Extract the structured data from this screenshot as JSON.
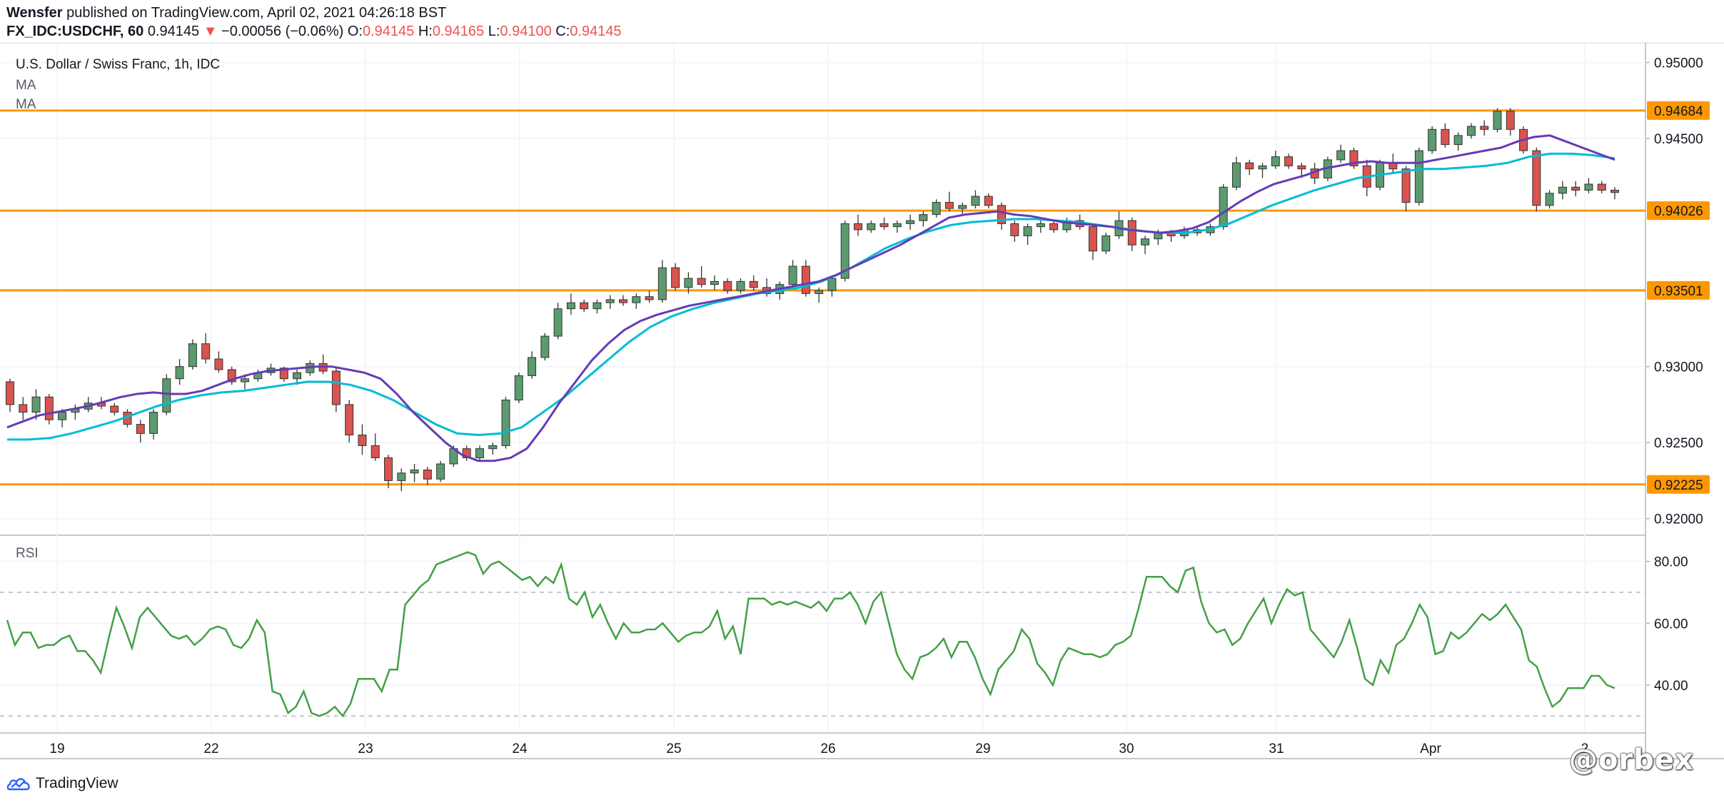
{
  "header": {
    "author": "Wensfer",
    "published_text": "published on TradingView.com, April 02, 2021 04:26:18 BST",
    "symbol": "FX_IDC:USDCHF, 60",
    "last": "0.94145",
    "change": "−0.00056 (−0.06%)",
    "o_label": "O:",
    "o": "0.94145",
    "h_label": "H:",
    "h": "0.94165",
    "l_label": "L:",
    "l": "0.94100",
    "c_label": "C:",
    "c": "0.94145"
  },
  "legend": {
    "series_title": "U.S. Dollar / Swiss Franc, 1h, IDC",
    "ma1": "MA",
    "ma2": "MA",
    "rsi": "RSI"
  },
  "footer": {
    "brand": "TradingView",
    "watermark": "@orbex"
  },
  "colors": {
    "up": "#26a69a",
    "down": "#ef5350",
    "candle_up_fill": "#5b9b6f",
    "candle_down_fill": "#d9534f",
    "hline": "#ff9800",
    "ma_fast": "#673ab7",
    "ma_slow": "#00bcd4",
    "rsi": "#43a047",
    "grid": "#f0f3fa",
    "axis_text": "#131722"
  },
  "chart_data": [
    {
      "type": "candlestick",
      "title": "U.S. Dollar / Swiss Franc, 1h, IDC",
      "ylim": [
        0.919,
        0.9512
      ],
      "y_ticks": [
        "0.95000",
        "0.94500",
        "0.93000",
        "0.92500",
        "0.92000"
      ],
      "x_tick_labels": [
        "19",
        "22",
        "23",
        "24",
        "25",
        "26",
        "29",
        "30",
        "31",
        "Apr",
        "2"
      ],
      "horizontal_levels": [
        "0.94684",
        "0.94026",
        "0.93501",
        "0.92225"
      ],
      "grid": true,
      "candles_ohlc": [
        [
          0.929,
          0.9292,
          0.927,
          0.9275
        ],
        [
          0.9275,
          0.928,
          0.9265,
          0.927
        ],
        [
          0.927,
          0.9285,
          0.9265,
          0.928
        ],
        [
          0.928,
          0.9282,
          0.9262,
          0.9265
        ],
        [
          0.9265,
          0.9272,
          0.926,
          0.927
        ],
        [
          0.927,
          0.9275,
          0.9265,
          0.9272
        ],
        [
          0.9272,
          0.928,
          0.927,
          0.9276
        ],
        [
          0.9276,
          0.928,
          0.9272,
          0.9274
        ],
        [
          0.9274,
          0.9276,
          0.9268,
          0.927
        ],
        [
          0.927,
          0.9272,
          0.926,
          0.9262
        ],
        [
          0.9262,
          0.9265,
          0.925,
          0.9256
        ],
        [
          0.9256,
          0.9272,
          0.9252,
          0.927
        ],
        [
          0.927,
          0.9295,
          0.9268,
          0.9292
        ],
        [
          0.9292,
          0.9305,
          0.9288,
          0.93
        ],
        [
          0.93,
          0.9318,
          0.9298,
          0.9315
        ],
        [
          0.9315,
          0.9322,
          0.9302,
          0.9305
        ],
        [
          0.9305,
          0.931,
          0.9296,
          0.9298
        ],
        [
          0.9298,
          0.93,
          0.9288,
          0.929
        ],
        [
          0.929,
          0.9295,
          0.9285,
          0.9292
        ],
        [
          0.9292,
          0.9298,
          0.929,
          0.9296
        ],
        [
          0.9296,
          0.9302,
          0.9294,
          0.9299
        ],
        [
          0.9299,
          0.93,
          0.929,
          0.9292
        ],
        [
          0.9292,
          0.9298,
          0.9288,
          0.9296
        ],
        [
          0.9296,
          0.9304,
          0.9294,
          0.9302
        ],
        [
          0.9302,
          0.9308,
          0.9295,
          0.9297
        ],
        [
          0.9297,
          0.9299,
          0.927,
          0.9275
        ],
        [
          0.9275,
          0.9278,
          0.925,
          0.9255
        ],
        [
          0.9255,
          0.9262,
          0.9242,
          0.9248
        ],
        [
          0.9248,
          0.9256,
          0.9238,
          0.924
        ],
        [
          0.924,
          0.9242,
          0.922,
          0.9225
        ],
        [
          0.9225,
          0.9233,
          0.9218,
          0.923
        ],
        [
          0.923,
          0.9236,
          0.9224,
          0.9232
        ],
        [
          0.9232,
          0.9234,
          0.9222,
          0.9226
        ],
        [
          0.9226,
          0.9238,
          0.9224,
          0.9236
        ],
        [
          0.9236,
          0.9248,
          0.9234,
          0.9246
        ],
        [
          0.9246,
          0.9248,
          0.9238,
          0.924
        ],
        [
          0.924,
          0.9248,
          0.9238,
          0.9246
        ],
        [
          0.9246,
          0.925,
          0.9242,
          0.9248
        ],
        [
          0.9248,
          0.928,
          0.9246,
          0.9278
        ],
        [
          0.9278,
          0.9296,
          0.9276,
          0.9294
        ],
        [
          0.9294,
          0.931,
          0.9292,
          0.9306
        ],
        [
          0.9306,
          0.9322,
          0.9304,
          0.932
        ],
        [
          0.932,
          0.9342,
          0.9318,
          0.9338
        ],
        [
          0.9338,
          0.9348,
          0.9334,
          0.9342
        ],
        [
          0.9342,
          0.9344,
          0.9336,
          0.9338
        ],
        [
          0.9338,
          0.9344,
          0.9335,
          0.9342
        ],
        [
          0.9342,
          0.9347,
          0.9338,
          0.9344
        ],
        [
          0.9344,
          0.9347,
          0.934,
          0.9342
        ],
        [
          0.9342,
          0.9348,
          0.9338,
          0.9346
        ],
        [
          0.9346,
          0.935,
          0.9342,
          0.9344
        ],
        [
          0.9344,
          0.937,
          0.9342,
          0.9365
        ],
        [
          0.9365,
          0.9368,
          0.935,
          0.9352
        ],
        [
          0.9352,
          0.9362,
          0.9348,
          0.9358
        ],
        [
          0.9358,
          0.9366,
          0.9352,
          0.9354
        ],
        [
          0.9354,
          0.936,
          0.935,
          0.9356
        ],
        [
          0.9356,
          0.9358,
          0.9348,
          0.935
        ],
        [
          0.935,
          0.9358,
          0.9348,
          0.9356
        ],
        [
          0.9356,
          0.936,
          0.935,
          0.9352
        ],
        [
          0.9352,
          0.9358,
          0.9346,
          0.9348
        ],
        [
          0.9348,
          0.9356,
          0.9344,
          0.9354
        ],
        [
          0.9354,
          0.937,
          0.9352,
          0.9366
        ],
        [
          0.9366,
          0.937,
          0.9346,
          0.9348
        ],
        [
          0.9348,
          0.9352,
          0.9342,
          0.935
        ],
        [
          0.935,
          0.936,
          0.9346,
          0.9358
        ],
        [
          0.9358,
          0.9396,
          0.9356,
          0.9394
        ],
        [
          0.9394,
          0.94,
          0.9386,
          0.939
        ],
        [
          0.939,
          0.9396,
          0.9388,
          0.9394
        ],
        [
          0.9394,
          0.9398,
          0.939,
          0.9392
        ],
        [
          0.9392,
          0.9396,
          0.9388,
          0.9394
        ],
        [
          0.9394,
          0.94,
          0.939,
          0.9396
        ],
        [
          0.9396,
          0.9402,
          0.9392,
          0.94
        ],
        [
          0.94,
          0.941,
          0.9398,
          0.9408
        ],
        [
          0.9408,
          0.9415,
          0.9402,
          0.9404
        ],
        [
          0.9404,
          0.9408,
          0.94,
          0.9406
        ],
        [
          0.9406,
          0.9416,
          0.9404,
          0.9412
        ],
        [
          0.9412,
          0.9414,
          0.9404,
          0.9406
        ],
        [
          0.9406,
          0.9408,
          0.939,
          0.9394
        ],
        [
          0.9394,
          0.9396,
          0.9382,
          0.9386
        ],
        [
          0.9386,
          0.9394,
          0.938,
          0.9392
        ],
        [
          0.9392,
          0.9396,
          0.9388,
          0.9394
        ],
        [
          0.9394,
          0.9396,
          0.9388,
          0.939
        ],
        [
          0.939,
          0.9398,
          0.9388,
          0.9396
        ],
        [
          0.9396,
          0.94,
          0.939,
          0.9392
        ],
        [
          0.9392,
          0.9394,
          0.937,
          0.9376
        ],
        [
          0.9376,
          0.9388,
          0.9374,
          0.9386
        ],
        [
          0.9386,
          0.9402,
          0.9384,
          0.9396
        ],
        [
          0.9396,
          0.9398,
          0.9376,
          0.938
        ],
        [
          0.938,
          0.9386,
          0.9374,
          0.9384
        ],
        [
          0.9384,
          0.939,
          0.938,
          0.9388
        ],
        [
          0.9388,
          0.939,
          0.9382,
          0.9386
        ],
        [
          0.9386,
          0.9392,
          0.9384,
          0.939
        ],
        [
          0.939,
          0.9392,
          0.9386,
          0.9388
        ],
        [
          0.9388,
          0.9394,
          0.9386,
          0.9392
        ],
        [
          0.9392,
          0.942,
          0.939,
          0.9418
        ],
        [
          0.9418,
          0.9438,
          0.9416,
          0.9434
        ],
        [
          0.9434,
          0.9436,
          0.9426,
          0.943
        ],
        [
          0.943,
          0.9434,
          0.9424,
          0.9432
        ],
        [
          0.9432,
          0.9442,
          0.943,
          0.9438
        ],
        [
          0.9438,
          0.944,
          0.943,
          0.9432
        ],
        [
          0.9432,
          0.9434,
          0.9424,
          0.943
        ],
        [
          0.943,
          0.9434,
          0.942,
          0.9424
        ],
        [
          0.9424,
          0.9438,
          0.9422,
          0.9436
        ],
        [
          0.9436,
          0.9446,
          0.9434,
          0.9442
        ],
        [
          0.9442,
          0.9444,
          0.943,
          0.9432
        ],
        [
          0.9432,
          0.9436,
          0.9412,
          0.9418
        ],
        [
          0.9418,
          0.9436,
          0.9416,
          0.9434
        ],
        [
          0.9434,
          0.944,
          0.9428,
          0.943
        ],
        [
          0.943,
          0.9432,
          0.9402,
          0.9408
        ],
        [
          0.9408,
          0.9444,
          0.9406,
          0.9442
        ],
        [
          0.9442,
          0.9458,
          0.944,
          0.9456
        ],
        [
          0.9456,
          0.946,
          0.9444,
          0.9446
        ],
        [
          0.9446,
          0.9454,
          0.9442,
          0.9452
        ],
        [
          0.9452,
          0.946,
          0.945,
          0.9458
        ],
        [
          0.9458,
          0.9462,
          0.9452,
          0.9456
        ],
        [
          0.9456,
          0.947,
          0.9454,
          0.9468
        ],
        [
          0.9468,
          0.947,
          0.9452,
          0.9456
        ],
        [
          0.9456,
          0.9458,
          0.944,
          0.9442
        ],
        [
          0.9442,
          0.9444,
          0.9402,
          0.9406
        ],
        [
          0.9406,
          0.9416,
          0.9404,
          0.9414
        ],
        [
          0.9414,
          0.9422,
          0.941,
          0.9418
        ],
        [
          0.9418,
          0.9422,
          0.9412,
          0.9416
        ],
        [
          0.9416,
          0.9424,
          0.9414,
          0.942
        ],
        [
          0.942,
          0.9422,
          0.9414,
          0.9416
        ],
        [
          0.9416,
          0.9418,
          0.941,
          0.94145
        ]
      ],
      "ma_fast": [
        0.926,
        0.9264,
        0.9268,
        0.927,
        0.9272,
        0.9274,
        0.9277,
        0.928,
        0.9282,
        0.9283,
        0.9282,
        0.9282,
        0.9284,
        0.9288,
        0.9292,
        0.9295,
        0.9297,
        0.9298,
        0.9299,
        0.93,
        0.93,
        0.9298,
        0.9296,
        0.9292,
        0.9282,
        0.927,
        0.926,
        0.925,
        0.9242,
        0.9238,
        0.9238,
        0.924,
        0.9246,
        0.926,
        0.9276,
        0.929,
        0.9304,
        0.9315,
        0.9324,
        0.933,
        0.9334,
        0.9337,
        0.934,
        0.9342,
        0.9344,
        0.9346,
        0.9348,
        0.935,
        0.9352,
        0.9354,
        0.9356,
        0.936,
        0.9365,
        0.937,
        0.9375,
        0.938,
        0.9386,
        0.9392,
        0.9398,
        0.94,
        0.9401,
        0.9402,
        0.94,
        0.9399,
        0.9397,
        0.9395,
        0.9394,
        0.9393,
        0.9392,
        0.939,
        0.9389,
        0.9388,
        0.9389,
        0.9391,
        0.9395,
        0.9402,
        0.9409,
        0.9415,
        0.942,
        0.9423,
        0.9426,
        0.943,
        0.9432,
        0.9434,
        0.9435,
        0.9434,
        0.9434,
        0.9434,
        0.9436,
        0.9438,
        0.944,
        0.9442,
        0.9444,
        0.9448,
        0.9451,
        0.9452,
        0.9448,
        0.9444,
        0.944,
        0.9436
      ],
      "ma_slow": [
        0.9252,
        0.9252,
        0.9253,
        0.9256,
        0.926,
        0.9264,
        0.9269,
        0.9274,
        0.9278,
        0.9281,
        0.9283,
        0.9284,
        0.9286,
        0.9288,
        0.929,
        0.929,
        0.9288,
        0.9284,
        0.9278,
        0.927,
        0.9262,
        0.9256,
        0.9255,
        0.9256,
        0.926,
        0.927,
        0.928,
        0.9292,
        0.9304,
        0.9316,
        0.9326,
        0.9333,
        0.9338,
        0.9342,
        0.9345,
        0.9348,
        0.935,
        0.9352,
        0.9356,
        0.9362,
        0.937,
        0.9378,
        0.9384,
        0.9389,
        0.9393,
        0.9395,
        0.9396,
        0.9397,
        0.9397,
        0.9396,
        0.9395,
        0.9393,
        0.9391,
        0.9389,
        0.9388,
        0.9388,
        0.939,
        0.9394,
        0.94,
        0.9406,
        0.9411,
        0.9416,
        0.942,
        0.9424,
        0.9426,
        0.9428,
        0.943,
        0.943,
        0.9431,
        0.9432,
        0.9434,
        0.9438,
        0.944,
        0.944,
        0.9439,
        0.9437
      ],
      "rsi": {
        "label": "RSI",
        "ylim": [
          25,
          88
        ],
        "y_ticks": [
          "80.00",
          "60.00",
          "40.00"
        ],
        "bands": [
          70,
          30
        ],
        "values": [
          61,
          53,
          57,
          57,
          52,
          53,
          53,
          55,
          56,
          51,
          51,
          48,
          44,
          55,
          65,
          59,
          52,
          62,
          65,
          62,
          59,
          56,
          55,
          56,
          53,
          55,
          58,
          59,
          58,
          53,
          52,
          55,
          61,
          57,
          38,
          37,
          31,
          33,
          38,
          31,
          30,
          31,
          33,
          30,
          34,
          42,
          42,
          42,
          38,
          45,
          45,
          66,
          69,
          72,
          74,
          79,
          80,
          81,
          82,
          83,
          82,
          76,
          79,
          80,
          78,
          76,
          74,
          75,
          72,
          75,
          73,
          79,
          68,
          66,
          70,
          62,
          66,
          60,
          55,
          60,
          57,
          57,
          58,
          58,
          60,
          57,
          54,
          56,
          57,
          57,
          59,
          64,
          55,
          59,
          50,
          68,
          68,
          68,
          66,
          67,
          66,
          67,
          66,
          65,
          67,
          64,
          68,
          68,
          70,
          66,
          60,
          67,
          70,
          60,
          50,
          45,
          42,
          49,
          50,
          52,
          55,
          49,
          54,
          54,
          49,
          42,
          37,
          45,
          48,
          51,
          58,
          55,
          47,
          44,
          40,
          48,
          52,
          51,
          50,
          50,
          49,
          50,
          53,
          54,
          56,
          65,
          75,
          75,
          75,
          72,
          70,
          77,
          78,
          67,
          60,
          57,
          58,
          53,
          55,
          60,
          64,
          68,
          60,
          66,
          71,
          69,
          70,
          58,
          55,
          52,
          49,
          54,
          61,
          52,
          42,
          40,
          48,
          44,
          53,
          55,
          60,
          66,
          62,
          50,
          51,
          57,
          55,
          57,
          60,
          63,
          61,
          63,
          66,
          62,
          58,
          48,
          46,
          39,
          33,
          35,
          39,
          39,
          39,
          43,
          43,
          40,
          39
        ]
      }
    }
  ]
}
